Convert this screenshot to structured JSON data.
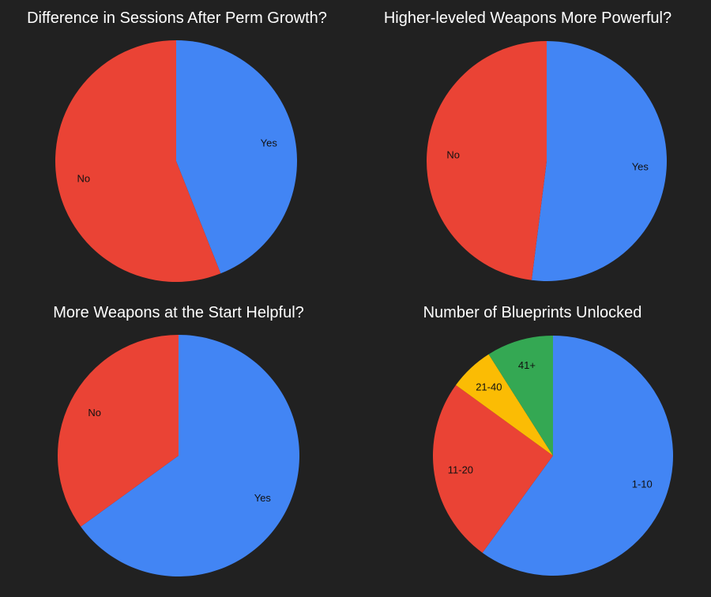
{
  "chart_data": [
    {
      "type": "pie",
      "title": "Difference in Sessions After Perm Growth?",
      "slices": [
        {
          "label": "Yes",
          "value": 44,
          "color": "#4285F4"
        },
        {
          "label": "No",
          "value": 56,
          "color": "#EA4335"
        }
      ]
    },
    {
      "type": "pie",
      "title": "Higher-leveled Weapons More Powerful?",
      "slices": [
        {
          "label": "Yes",
          "value": 52,
          "color": "#4285F4"
        },
        {
          "label": "No",
          "value": 48,
          "color": "#EA4335"
        }
      ]
    },
    {
      "type": "pie",
      "title": "More Weapons at the Start Helpful?",
      "slices": [
        {
          "label": "Yes",
          "value": 65,
          "color": "#4285F4"
        },
        {
          "label": "No",
          "value": 35,
          "color": "#EA4335"
        }
      ]
    },
    {
      "type": "pie",
      "title": "Number of Blueprints Unlocked",
      "slices": [
        {
          "label": "1-10",
          "value": 60,
          "color": "#4285F4"
        },
        {
          "label": "11-20",
          "value": 25,
          "color": "#EA4335"
        },
        {
          "label": "21-40",
          "value": 6,
          "color": "#FBBC04"
        },
        {
          "label": "41+",
          "value": 9,
          "color": "#34A853"
        }
      ]
    }
  ]
}
